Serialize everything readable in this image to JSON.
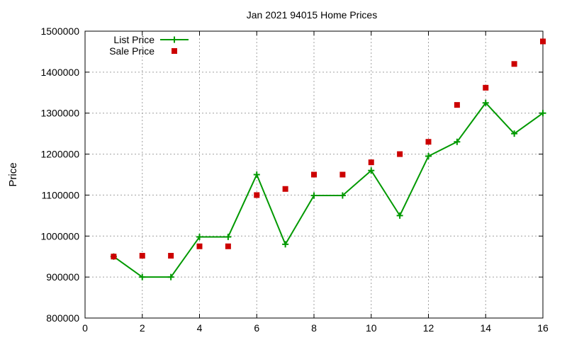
{
  "chart_data": {
    "type": "line",
    "title": "Jan 2021 94015 Home Prices",
    "xlabel": "",
    "ylabel": "Price",
    "xlim": [
      0,
      16
    ],
    "ylim": [
      800000,
      1500000
    ],
    "xticks": [
      0,
      2,
      4,
      6,
      8,
      10,
      12,
      14,
      16
    ],
    "yticks": [
      800000,
      900000,
      1000000,
      1100000,
      1200000,
      1300000,
      1400000,
      1500000
    ],
    "grid": true,
    "legend_position": "top-left",
    "series": [
      {
        "name": "List Price",
        "style": "line-plus",
        "color": "#009900",
        "x": [
          1,
          2,
          3,
          4,
          5,
          6,
          7,
          8,
          9,
          10,
          11,
          12,
          13,
          14,
          15,
          16
        ],
        "values": [
          950000,
          900000,
          900000,
          998000,
          998000,
          1150000,
          980000,
          1099000,
          1099000,
          1160000,
          1050000,
          1195000,
          1230000,
          1325000,
          1250000,
          1300000
        ]
      },
      {
        "name": "Sale Price",
        "style": "square",
        "color": "#cc0000",
        "x": [
          1,
          2,
          3,
          4,
          5,
          6,
          7,
          8,
          9,
          10,
          11,
          12,
          13,
          14,
          15,
          16
        ],
        "values": [
          950000,
          952000,
          952000,
          975000,
          975000,
          1100000,
          1115000,
          1150000,
          1150000,
          1180000,
          1200000,
          1230000,
          1320000,
          1362000,
          1420000,
          1475000
        ]
      }
    ]
  }
}
